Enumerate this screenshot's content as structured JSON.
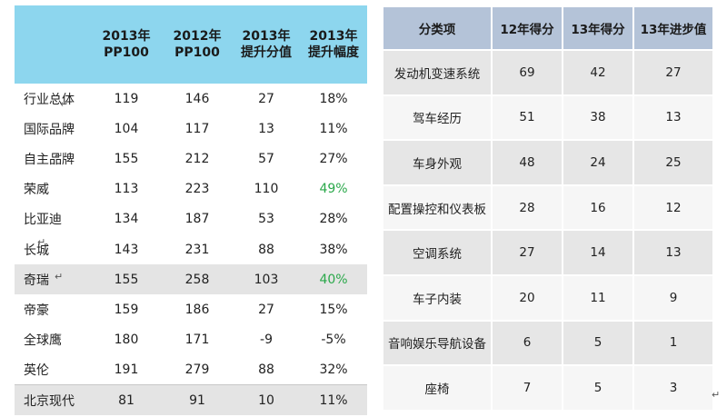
{
  "left_table": {
    "headers": [
      "",
      "2013年\nPP100",
      "2012年\nPP100",
      "2013年\n提升分值",
      "2013年\n提升幅度"
    ],
    "rows": [
      {
        "name": "行业总体",
        "v2013": "119",
        "v2012": "146",
        "delta": "27",
        "pct": "18%",
        "pct_green": false,
        "highlight": false,
        "bordered": false
      },
      {
        "name": "国际品牌",
        "v2013": "104",
        "v2012": "117",
        "delta": "13",
        "pct": "11%",
        "pct_green": false,
        "highlight": false,
        "bordered": false
      },
      {
        "name": "自主品牌",
        "v2013": "155",
        "v2012": "212",
        "delta": "57",
        "pct": "27%",
        "pct_green": false,
        "highlight": false,
        "bordered": false
      },
      {
        "name": "荣威",
        "v2013": "113",
        "v2012": "223",
        "delta": "110",
        "pct": "49%",
        "pct_green": true,
        "highlight": false,
        "bordered": false
      },
      {
        "name": "比亚迪",
        "v2013": "134",
        "v2012": "187",
        "delta": "53",
        "pct": "28%",
        "pct_green": false,
        "highlight": false,
        "bordered": false
      },
      {
        "name": "长城",
        "v2013": "143",
        "v2012": "231",
        "delta": "88",
        "pct": "38%",
        "pct_green": false,
        "highlight": false,
        "bordered": false
      },
      {
        "name": "奇瑞",
        "v2013": "155",
        "v2012": "258",
        "delta": "103",
        "pct": "40%",
        "pct_green": true,
        "highlight": true,
        "bordered": false
      },
      {
        "name": "帝豪",
        "v2013": "159",
        "v2012": "186",
        "delta": "27",
        "pct": "15%",
        "pct_green": false,
        "highlight": false,
        "bordered": false
      },
      {
        "name": "全球鹰",
        "v2013": "180",
        "v2012": "171",
        "delta": "-9",
        "pct": "-5%",
        "pct_green": false,
        "highlight": false,
        "bordered": false
      },
      {
        "name": "英伦",
        "v2013": "191",
        "v2012": "279",
        "delta": "88",
        "pct": "32%",
        "pct_green": false,
        "highlight": false,
        "bordered": false
      },
      {
        "name": "北京现代",
        "v2013": "81",
        "v2012": "91",
        "delta": "10",
        "pct": "11%",
        "pct_green": false,
        "highlight": true,
        "bordered": true
      }
    ],
    "colors": {
      "header_bg": "#8dd6ee",
      "highlight_bg": "#e4e4e4",
      "green_text": "#2aa84a"
    }
  },
  "right_table": {
    "headers": [
      "分类项",
      "12年得分",
      "13年得分",
      "13年进步值"
    ],
    "rows": [
      {
        "item": "发动机变速系统",
        "s12": "69",
        "s13": "42",
        "delta": "27"
      },
      {
        "item": "驾车经历",
        "s12": "51",
        "s13": "38",
        "delta": "13"
      },
      {
        "item": "车身外观",
        "s12": "48",
        "s13": "24",
        "delta": "25"
      },
      {
        "item": "配置操控和仪表板",
        "s12": "28",
        "s13": "16",
        "delta": "12"
      },
      {
        "item": "空调系统",
        "s12": "27",
        "s13": "14",
        "delta": "13"
      },
      {
        "item": "车子内装",
        "s12": "20",
        "s13": "11",
        "delta": "9"
      },
      {
        "item": "音响娱乐导航设备",
        "s12": "6",
        "s13": "5",
        "delta": "1"
      },
      {
        "item": "座椅",
        "s12": "7",
        "s13": "5",
        "delta": "3"
      }
    ],
    "colors": {
      "header_bg": "#b4c3d8",
      "row_dark": "#e6e6e6",
      "row_light": "#f6f6f6"
    }
  },
  "marks": {
    "return_mark": "↵"
  }
}
